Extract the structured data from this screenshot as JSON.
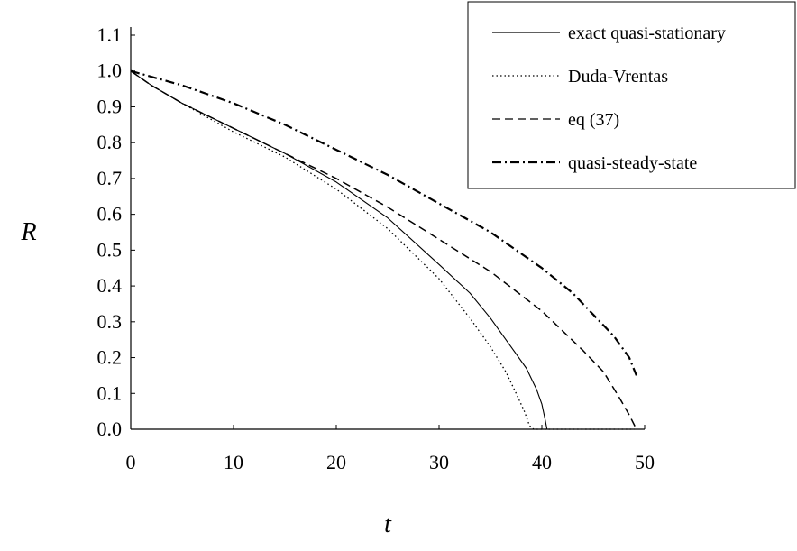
{
  "chart_data": {
    "type": "line",
    "xlabel": "t",
    "ylabel": "R",
    "xlim": [
      0,
      50
    ],
    "ylim": [
      0,
      1.1
    ],
    "xticks": [
      "0",
      "10",
      "20",
      "30",
      "40",
      "50"
    ],
    "yticks": [
      "0.0",
      "0.1",
      "0.2",
      "0.3",
      "0.4",
      "0.5",
      "0.6",
      "0.7",
      "0.8",
      "0.9",
      "1.0",
      "1.1"
    ],
    "grid": false,
    "legend_position": "top-right",
    "series": [
      {
        "name": "exact quasi-stationary",
        "style": "solid",
        "x": [
          0,
          2,
          5,
          10,
          15,
          20,
          25,
          30,
          33,
          35,
          37,
          38.5,
          39.5,
          40,
          40.3,
          40.5
        ],
        "y": [
          1.0,
          0.96,
          0.91,
          0.84,
          0.77,
          0.69,
          0.59,
          0.46,
          0.38,
          0.31,
          0.23,
          0.17,
          0.11,
          0.07,
          0.03,
          0.0
        ]
      },
      {
        "name": "Duda-Vrentas",
        "style": "dotted",
        "x": [
          0,
          2,
          5,
          10,
          15,
          20,
          25,
          30,
          33,
          35,
          36.5,
          37.5,
          38.3,
          38.8,
          39.2,
          42,
          46,
          49
        ],
        "y": [
          1.0,
          0.96,
          0.91,
          0.83,
          0.76,
          0.67,
          0.56,
          0.42,
          0.31,
          0.23,
          0.16,
          0.1,
          0.05,
          0.01,
          0.0,
          0.0,
          0.0,
          0.0
        ]
      },
      {
        "name": "eq (37)",
        "style": "dashed",
        "x": [
          0,
          2,
          5,
          10,
          15,
          20,
          25,
          30,
          35,
          40,
          44,
          46,
          47.5,
          48.5,
          49.2
        ],
        "y": [
          1.0,
          0.96,
          0.91,
          0.84,
          0.77,
          0.7,
          0.62,
          0.53,
          0.44,
          0.33,
          0.22,
          0.16,
          0.09,
          0.04,
          0.0
        ]
      },
      {
        "name": "quasi-steady-state",
        "style": "dash-dot",
        "x": [
          0,
          5,
          10,
          15,
          20,
          25,
          30,
          35,
          40,
          43,
          45,
          47,
          48.5,
          49.2
        ],
        "y": [
          1.0,
          0.96,
          0.91,
          0.85,
          0.78,
          0.71,
          0.63,
          0.55,
          0.45,
          0.38,
          0.32,
          0.26,
          0.2,
          0.15
        ]
      }
    ]
  }
}
